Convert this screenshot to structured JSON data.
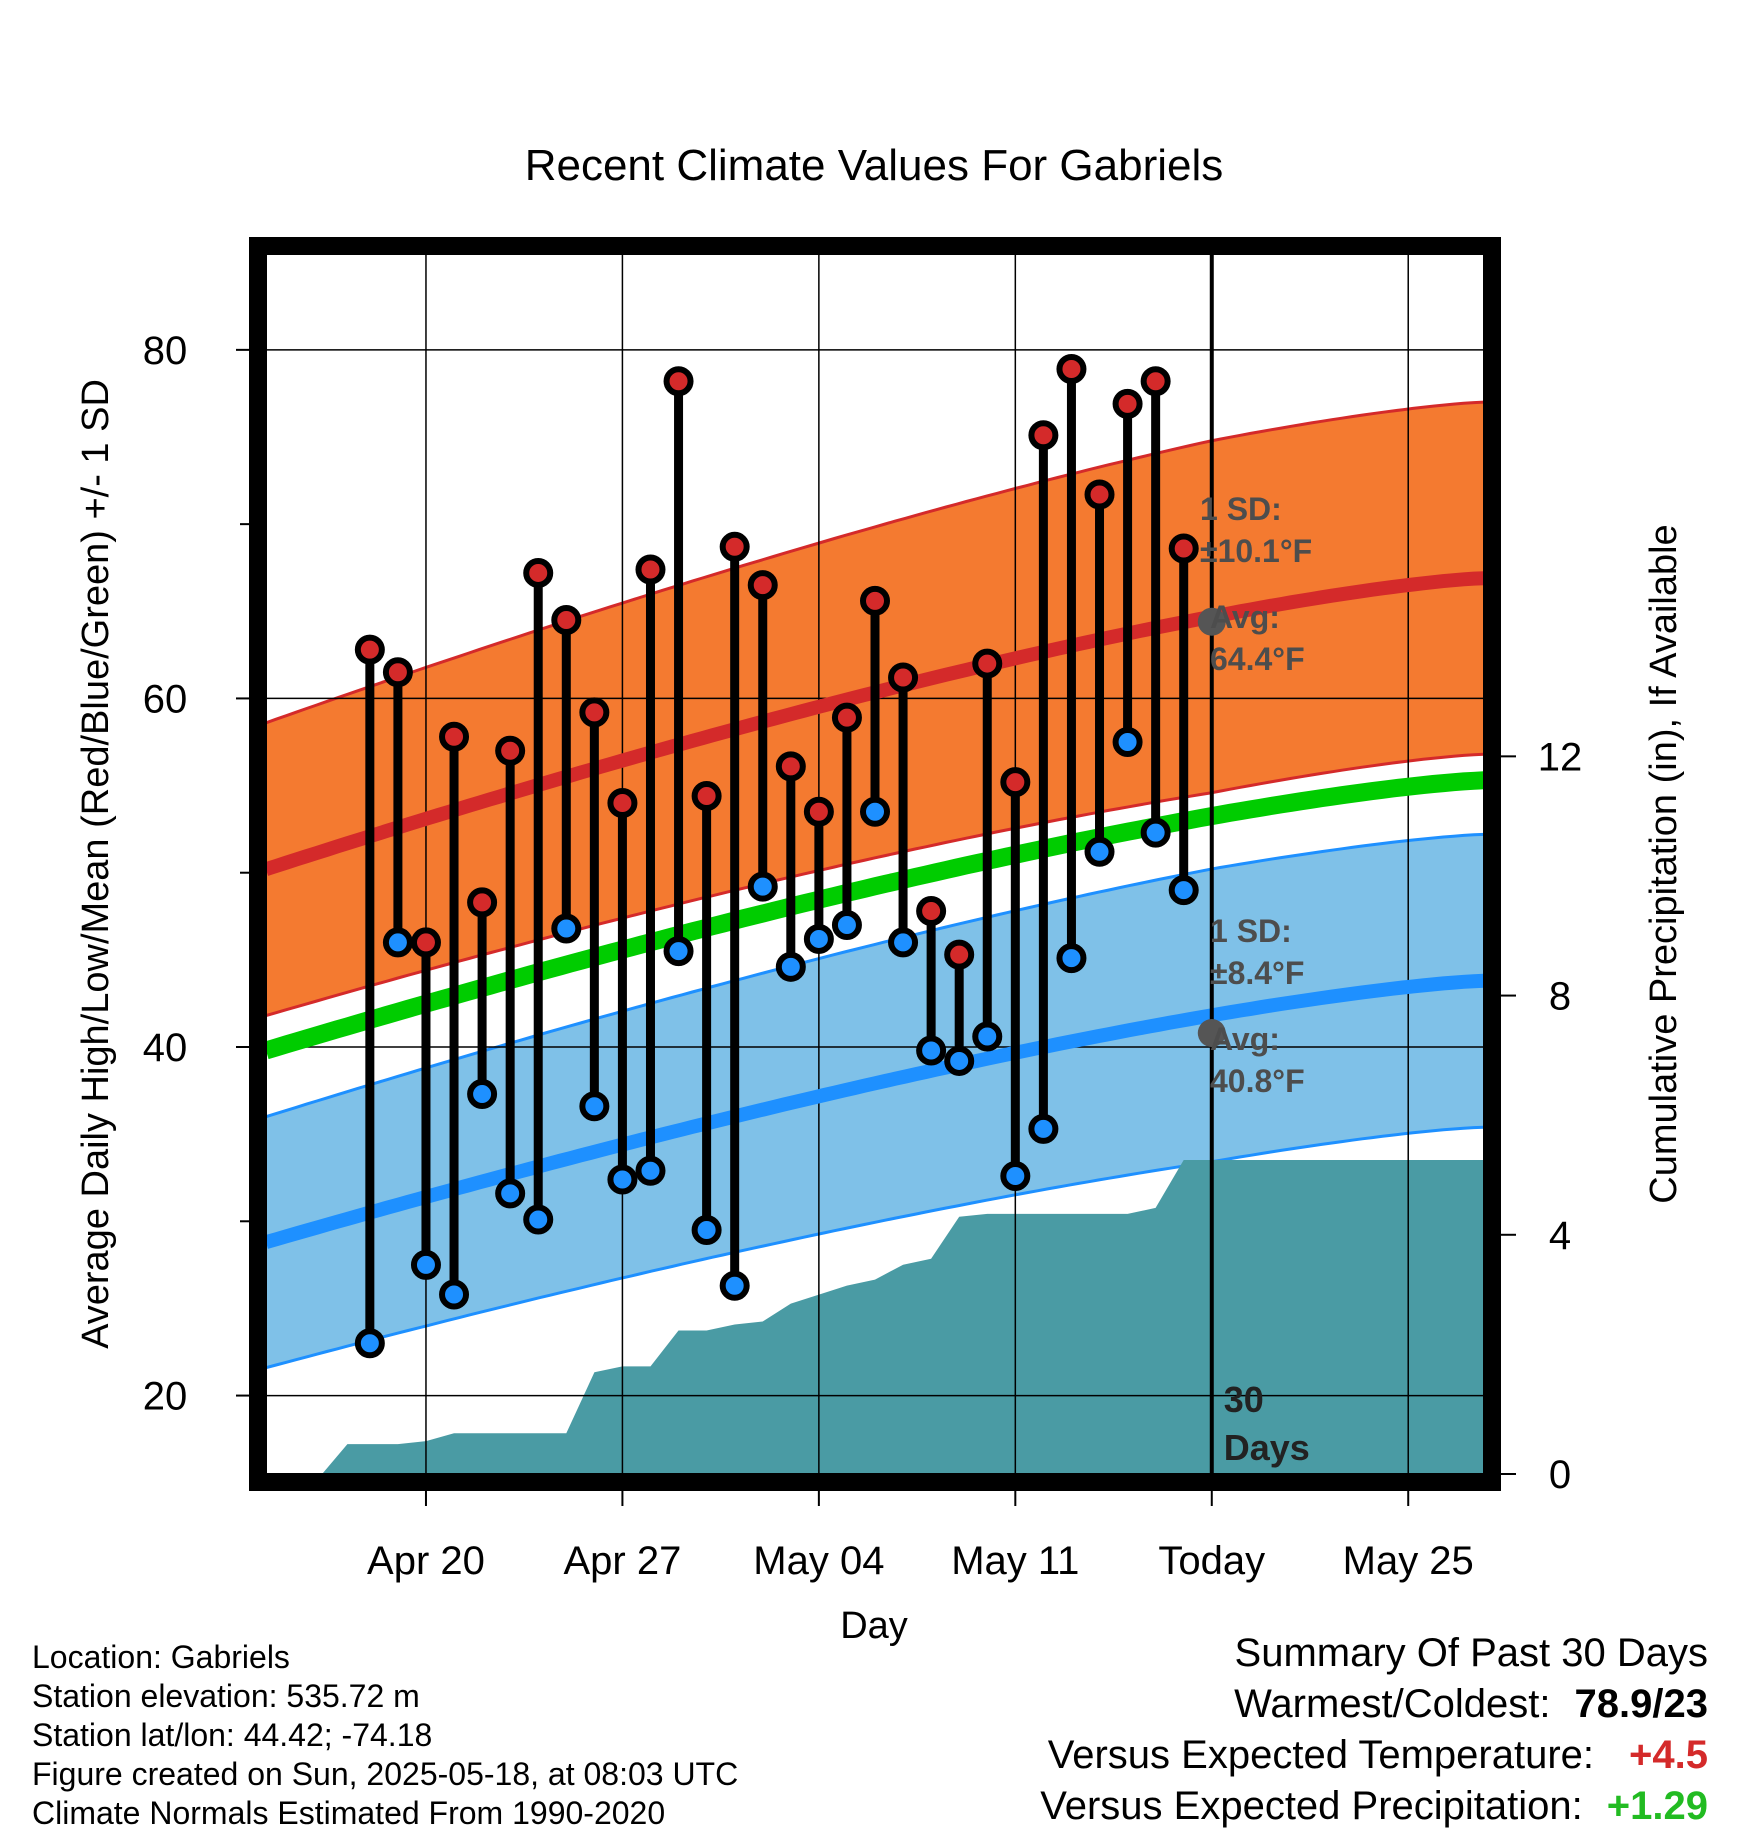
{
  "chart_data": {
    "type": "line",
    "title": "Recent Climate Values For Gabriels",
    "xlabel": "Day",
    "ylabel_left": "Average Daily High/Low/Mean (Red/Blue/Green) +/- 1 SD",
    "ylabel_right": "Cumulative Precipitation (in), If Available",
    "ylim_left": [
      15.5,
      85.5
    ],
    "ylim_right": [
      0,
      20.4
    ],
    "y_ticks_left": [
      20,
      40,
      60,
      80
    ],
    "y_ticks_right": [
      0,
      4,
      8,
      12
    ],
    "x_range_days": [
      -33.7,
      9.7
    ],
    "x_ticks": [
      {
        "day": -28,
        "label": "Apr 20"
      },
      {
        "day": -21,
        "label": "Apr 27"
      },
      {
        "day": -14,
        "label": "May 04"
      },
      {
        "day": -7,
        "label": "May 11"
      },
      {
        "day": 0,
        "label": "Today"
      },
      {
        "day": 7,
        "label": "May 25"
      }
    ],
    "grid": true,
    "today_marker_label": [
      "30",
      "Days"
    ],
    "daily_high": [
      62.8,
      61.5,
      46.0,
      57.8,
      48.3,
      57.0,
      67.2,
      64.5,
      59.2,
      54.0,
      67.4,
      78.2,
      54.4,
      68.7,
      66.5,
      56.1,
      53.5,
      58.9,
      65.6,
      61.2,
      47.8,
      45.3,
      62.0,
      55.2,
      75.1,
      78.9,
      71.7,
      76.9,
      78.2,
      68.6
    ],
    "daily_low": [
      23.0,
      46.0,
      27.5,
      25.8,
      37.3,
      31.6,
      30.1,
      46.8,
      36.6,
      32.4,
      32.9,
      45.5,
      29.5,
      26.3,
      49.2,
      44.6,
      46.2,
      47.0,
      53.5,
      46.0,
      39.8,
      39.2,
      40.6,
      32.6,
      35.3,
      45.1,
      51.2,
      57.5,
      52.3,
      49.0
    ],
    "normal_high": {
      "start": 50.2,
      "end": 66.9,
      "sd": 8.4,
      "today_avg": 64.4,
      "today_sd": 10.1
    },
    "normal_mean": {
      "start": 39.8,
      "end": 55.3
    },
    "normal_low": {
      "start": 28.8,
      "end": 43.8,
      "today_avg": 40.8,
      "today_sd": 8.4
    },
    "precip_cumulative": [
      [
        -31.7,
        0.0
      ],
      [
        -30.8,
        0.5
      ],
      [
        -30.0,
        0.5
      ],
      [
        -29.0,
        0.5
      ],
      [
        -28.0,
        0.55
      ],
      [
        -27.0,
        0.68
      ],
      [
        -26.0,
        0.68
      ],
      [
        -25.0,
        0.68
      ],
      [
        -24.0,
        0.68
      ],
      [
        -23.0,
        0.68
      ],
      [
        -22.0,
        1.7
      ],
      [
        -21.0,
        1.8
      ],
      [
        -20.0,
        1.8
      ],
      [
        -19.0,
        2.4
      ],
      [
        -18.0,
        2.4
      ],
      [
        -17.0,
        2.5
      ],
      [
        -16.0,
        2.55
      ],
      [
        -15.0,
        2.85
      ],
      [
        -14.0,
        3.0
      ],
      [
        -13.0,
        3.15
      ],
      [
        -12.0,
        3.25
      ],
      [
        -11.0,
        3.5
      ],
      [
        -10.0,
        3.6
      ],
      [
        -9.0,
        4.3
      ],
      [
        -8.0,
        4.35
      ],
      [
        -7.0,
        4.35
      ],
      [
        -6.0,
        4.35
      ],
      [
        -5.0,
        4.35
      ],
      [
        -4.0,
        4.35
      ],
      [
        -3.0,
        4.35
      ],
      [
        -2.0,
        4.45
      ],
      [
        -1.0,
        5.25
      ],
      [
        0.0,
        5.25
      ],
      [
        9.7,
        5.25
      ]
    ],
    "colors": {
      "high_band": "#f47a30",
      "high_line": "#d42a2a",
      "mean_line": "#00cc00",
      "low_band": "#7fc1e8",
      "low_line": "#1e90ff",
      "precip": "#4a9ba4",
      "high_dot": "#d42a2a",
      "low_dot": "#1e90ff"
    }
  },
  "annotations": {
    "high_sd_line1": "1 SD:",
    "high_sd_line2": "±10.1°F",
    "high_avg_line1": "Avg:",
    "high_avg_line2": "64.4°F",
    "low_sd_line1": "1 SD:",
    "low_sd_line2": "±8.4°F",
    "low_avg_line1": "Avg:",
    "low_avg_line2": "40.8°F"
  },
  "footer": {
    "location": "Location: Gabriels",
    "elevation": "Station elevation: 535.72 m",
    "latlon": "Station lat/lon: 44.42; -74.18",
    "created": "Figure created on Sun, 2025-05-18, at 08:03 UTC",
    "normals": "Climate Normals Estimated From 1990-2020"
  },
  "summary": {
    "heading": "Summary Of Past 30 Days",
    "warm_cold_label": "Warmest/Coldest:",
    "warm_cold_value": "78.9/23",
    "temp_label": "Versus Expected Temperature:",
    "temp_value": "+4.5",
    "temp_color": "#d42a2a",
    "precip_label": "Versus Expected Precipitation:",
    "precip_value": "+1.29",
    "precip_color": "#22bb22"
  }
}
